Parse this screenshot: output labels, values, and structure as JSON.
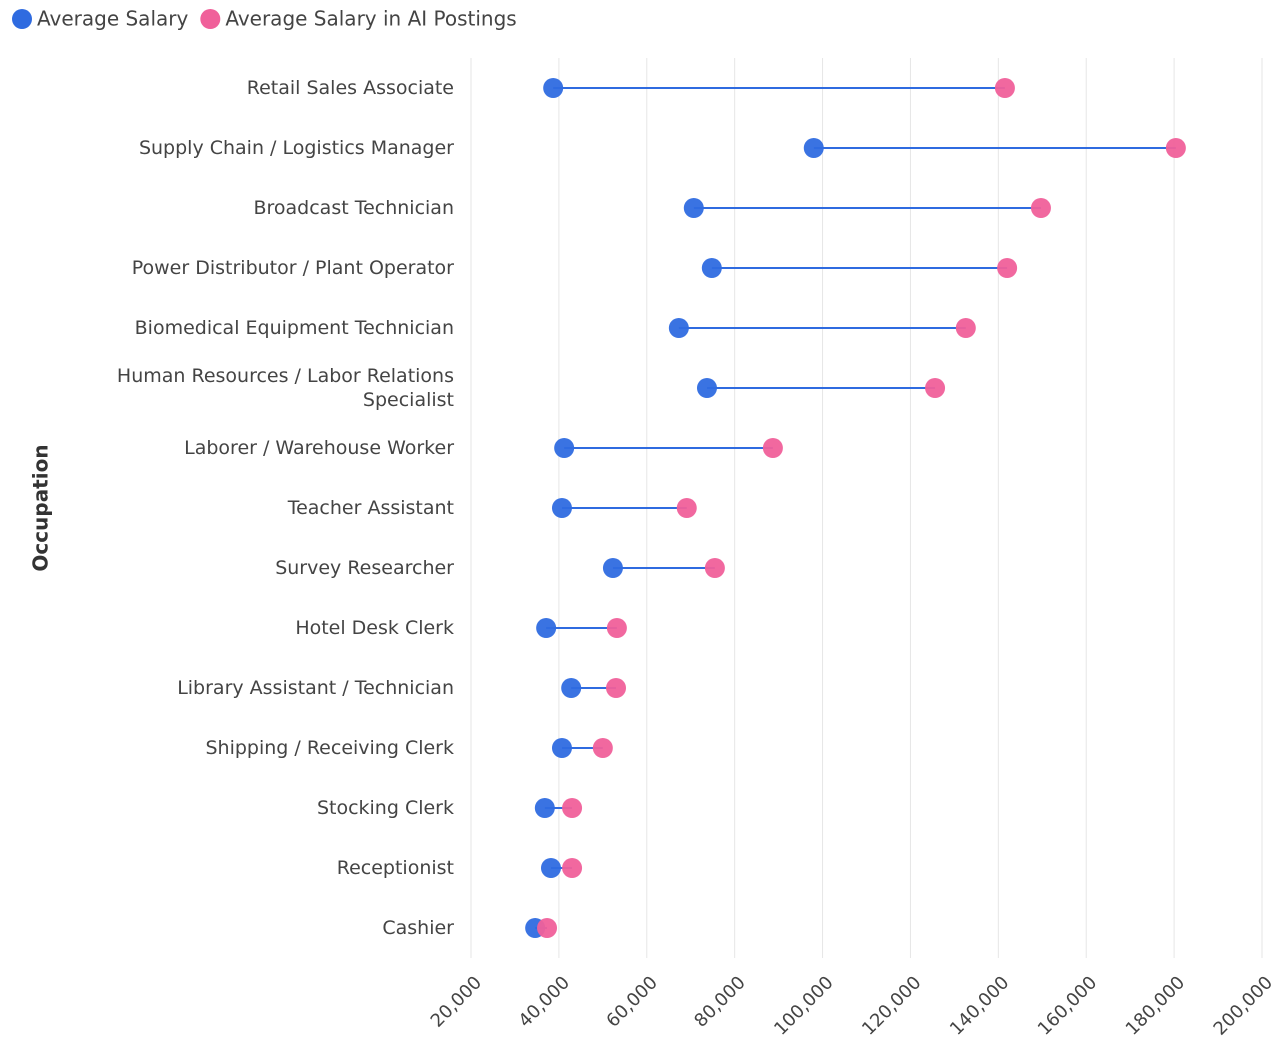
{
  "chart_data": {
    "type": "dumbbell",
    "y_label": "Occupation",
    "categories": [
      "Retail Sales Associate",
      "Supply Chain / Logistics Manager",
      "Broadcast Technician",
      "Power Distributor / Plant Operator",
      "Biomedical Equipment Technician",
      "Human Resources / Labor Relations Specialist",
      "Laborer / Warehouse Worker",
      "Teacher Assistant",
      "Survey Researcher",
      "Hotel Desk Clerk",
      "Library Assistant / Technician",
      "Shipping / Receiving Clerk",
      "Stocking Clerk",
      "Receptionist",
      "Cashier"
    ],
    "series": [
      {
        "name": "Average Salary",
        "color": "#2f6be0",
        "values": [
          38700,
          98000,
          70700,
          74800,
          67300,
          73700,
          41200,
          40700,
          52300,
          37100,
          42800,
          40700,
          36800,
          38200,
          34600
        ]
      },
      {
        "name": "Average Salary in AI Postings",
        "color": "#f0609a",
        "values": [
          141500,
          180400,
          149700,
          142000,
          132600,
          125600,
          88700,
          69100,
          75500,
          53200,
          53000,
          50000,
          43000,
          43000,
          37300
        ]
      }
    ],
    "line_color": "#2f6be0",
    "xlim": [
      20000,
      200000
    ],
    "xticks": [
      {
        "value": 20000,
        "label": "20,000"
      },
      {
        "value": 40000,
        "label": "40,000"
      },
      {
        "value": 60000,
        "label": "60,000"
      },
      {
        "value": 80000,
        "label": "80,000"
      },
      {
        "value": 100000,
        "label": "100,000"
      },
      {
        "value": 120000,
        "label": "120,000"
      },
      {
        "value": 140000,
        "label": "140,000"
      },
      {
        "value": 160000,
        "label": "160,000"
      },
      {
        "value": 180000,
        "label": "180,000"
      },
      {
        "value": 200000,
        "label": "200,000"
      }
    ],
    "grid": true
  }
}
